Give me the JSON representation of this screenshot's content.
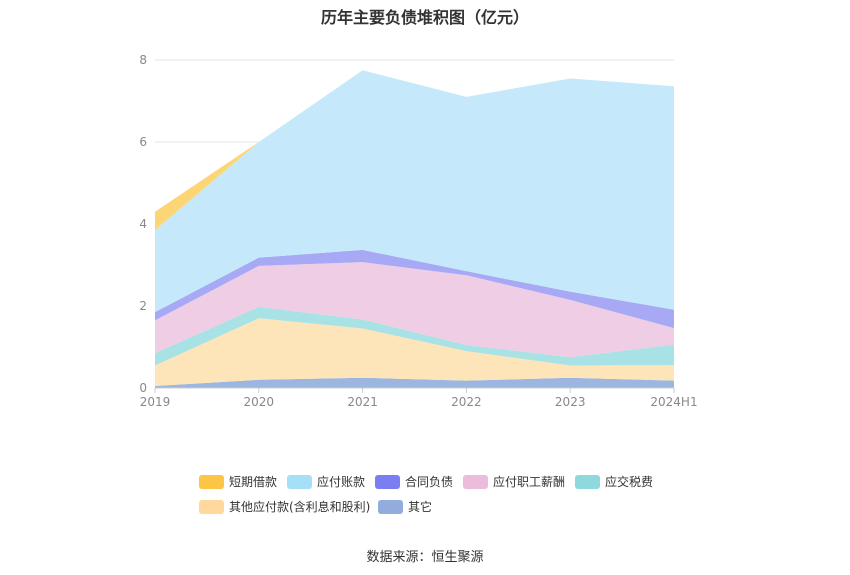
{
  "chart_data": {
    "type": "area",
    "stacked": true,
    "title": "历年主要负债堆积图（亿元）",
    "categories": [
      "2019",
      "2020",
      "2021",
      "2022",
      "2023",
      "2024H1"
    ],
    "ylim": [
      0,
      8
    ],
    "yticks": [
      "0",
      "2",
      "4",
      "6",
      "8"
    ],
    "grid": true,
    "legend_position": "bottom",
    "series": [
      {
        "name": "其它",
        "color": "#9db6e0",
        "values": [
          0.05,
          0.2,
          0.25,
          0.18,
          0.25,
          0.18
        ]
      },
      {
        "name": "其他应付款(含利息和股利)",
        "color": "#fde5b9",
        "values": [
          0.5,
          1.5,
          1.2,
          0.72,
          0.3,
          0.38
        ]
      },
      {
        "name": "应交税费",
        "color": "#a8e2e5",
        "values": [
          0.3,
          0.28,
          0.22,
          0.15,
          0.2,
          0.5
        ]
      },
      {
        "name": "应付职工薪酬",
        "color": "#efcde5",
        "values": [
          0.8,
          1.0,
          1.4,
          1.7,
          1.4,
          0.4
        ]
      },
      {
        "name": "合同负债",
        "color": "#a7a9f5",
        "values": [
          0.2,
          0.2,
          0.3,
          0.1,
          0.2,
          0.45
        ]
      },
      {
        "name": "应付账款",
        "color": "#c5e9fb",
        "values": [
          2.0,
          2.82,
          4.38,
          4.25,
          5.2,
          5.45
        ]
      },
      {
        "name": "短期借款",
        "color": "#fcd675",
        "values": [
          0.45,
          0.0,
          0.0,
          0.0,
          0.0,
          0.0
        ]
      }
    ]
  },
  "legend": [
    {
      "label": "短期借款",
      "color": "#fdc546"
    },
    {
      "label": "应付账款",
      "color": "#a6e0f8"
    },
    {
      "label": "合同负债",
      "color": "#7b7ef0"
    },
    {
      "label": "应付职工薪酬",
      "color": "#ebbcdc"
    },
    {
      "label": "应交税费",
      "color": "#8dd9dd"
    },
    {
      "label": "其他应付款(含利息和股利)",
      "color": "#fed89c"
    },
    {
      "label": "其它",
      "color": "#92acdd"
    }
  ],
  "source": "数据来源：恒生聚源"
}
